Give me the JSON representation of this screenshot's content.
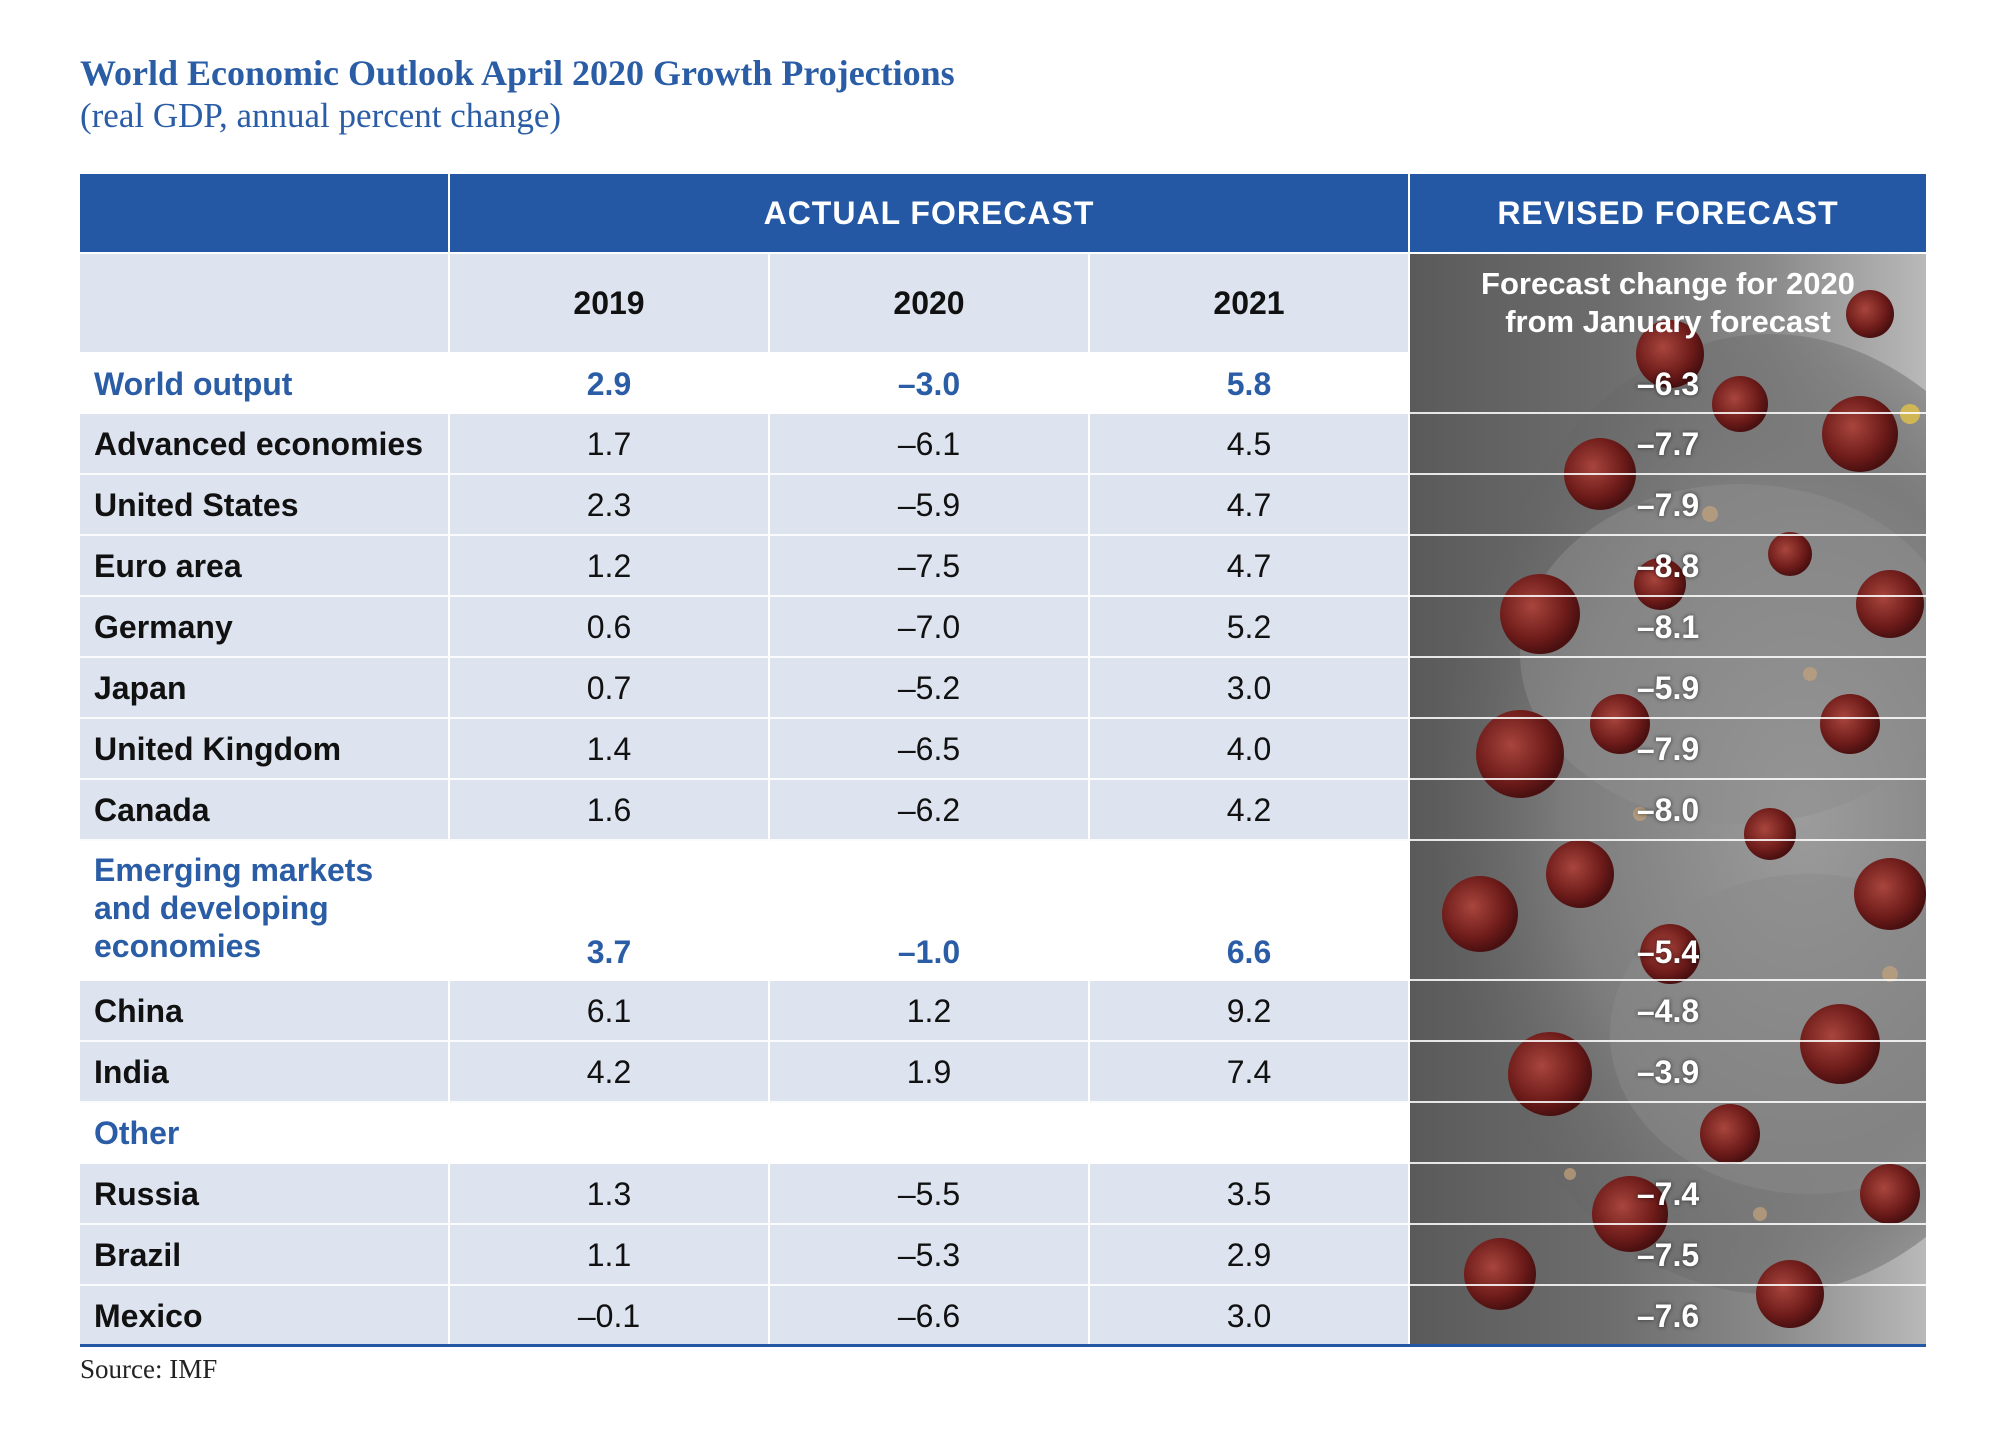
{
  "title": "World Economic Outlook April 2020 Growth Projections",
  "subtitle": "(real GDP, annual percent change)",
  "header": {
    "actual_forecast": "ACTUAL FORECAST",
    "revised_forecast": "REVISED FORECAST",
    "years": [
      "2019",
      "2020",
      "2021"
    ],
    "forecast_change_line1": "Forecast change for 2020",
    "forecast_change_line2": "from January forecast"
  },
  "rows": [
    {
      "label": "World output",
      "v2019": "2.9",
      "v2020": "–3.0",
      "v2021": "5.8",
      "change": "–6.3"
    },
    {
      "label": "Advanced economies",
      "v2019": "1.7",
      "v2020": "–6.1",
      "v2021": "4.5",
      "change": "–7.7"
    },
    {
      "label": "United States",
      "v2019": "2.3",
      "v2020": "–5.9",
      "v2021": "4.7",
      "change": "–7.9"
    },
    {
      "label": "Euro area",
      "v2019": "1.2",
      "v2020": "–7.5",
      "v2021": "4.7",
      "change": "–8.8"
    },
    {
      "label": "Germany",
      "v2019": "0.6",
      "v2020": "–7.0",
      "v2021": "5.2",
      "change": "–8.1"
    },
    {
      "label": "Japan",
      "v2019": "0.7",
      "v2020": "–5.2",
      "v2021": "3.0",
      "change": "–5.9"
    },
    {
      "label": "United Kingdom",
      "v2019": "1.4",
      "v2020": "–6.5",
      "v2021": "4.0",
      "change": "–7.9"
    },
    {
      "label": "Canada",
      "v2019": "1.6",
      "v2020": "–6.2",
      "v2021": "4.2",
      "change": "–8.0"
    },
    {
      "label_lines": [
        "Emerging markets",
        "and developing",
        "economies"
      ],
      "v2019": "3.7",
      "v2020": "–1.0",
      "v2021": "6.6",
      "change": "–5.4"
    },
    {
      "label": "China",
      "v2019": "6.1",
      "v2020": "1.2",
      "v2021": "9.2",
      "change": "–4.8"
    },
    {
      "label": "India",
      "v2019": "4.2",
      "v2020": "1.9",
      "v2021": "7.4",
      "change": "–3.9"
    },
    {
      "label": "Other",
      "v2019": "",
      "v2020": "",
      "v2021": "",
      "change": ""
    },
    {
      "label": "Russia",
      "v2019": "1.3",
      "v2020": "–5.5",
      "v2021": "3.5",
      "change": "–7.4"
    },
    {
      "label": "Brazil",
      "v2019": "1.1",
      "v2020": "–5.3",
      "v2021": "2.9",
      "change": "–7.5"
    },
    {
      "label": "Mexico",
      "v2019": "–0.1",
      "v2020": "–6.6",
      "v2021": "3.0",
      "change": "–7.6"
    }
  ],
  "source": "Source: IMF",
  "colors": {
    "accent_blue": "#2458a4",
    "title_blue": "#2a5da5",
    "row_shade": "#dde4ef",
    "virus_red": "#7a1f1f"
  }
}
